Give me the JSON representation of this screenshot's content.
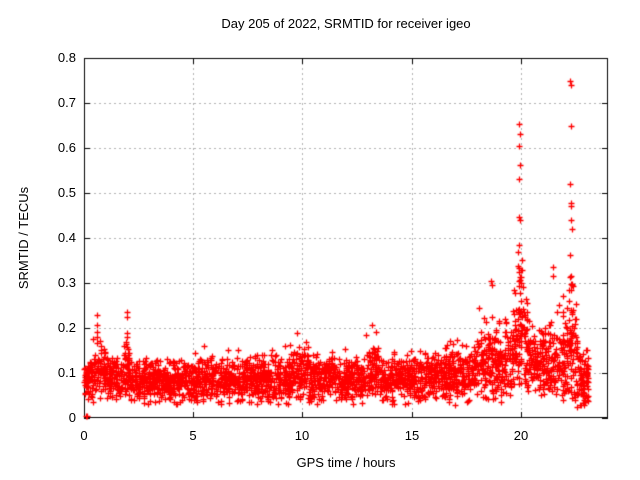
{
  "window_title": "Day 205 of 2022, SRMTID for receiver igeo",
  "chart_data": {
    "type": "scatter",
    "title": "Day 205 of 2022, SRMTID for receiver igeo",
    "xlabel": "GPS time / hours",
    "ylabel": "SRMTID / TECUs",
    "xlim": [
      0,
      24
    ],
    "ylim": [
      0,
      0.8
    ],
    "xticks": [
      0,
      5,
      10,
      15,
      20
    ],
    "xtick_labels": [
      "0",
      "5",
      "10",
      "15",
      "20"
    ],
    "yticks": [
      0,
      0.1,
      0.2,
      0.3,
      0.4,
      0.5,
      0.6,
      0.7,
      0.8
    ],
    "ytick_labels": [
      "0",
      "0.1",
      "0.2",
      "0.3",
      "0.4",
      "0.5",
      "0.6",
      "0.7",
      "0.8"
    ],
    "grid": true,
    "grid_style": "dashed",
    "legend": "none",
    "marker": "plus",
    "marker_size_px": 7,
    "marker_color": "#ff0000",
    "axis_color": "#000000",
    "grid_color": "#b0b0b0",
    "background": "#ffffff",
    "series_name": "SRMTID",
    "data_time_span_hours": [
      0,
      23.1
    ],
    "outlier_points_format": [
      "gps_hour",
      "srmtid_tecu"
    ],
    "outlier_points": [
      [
        0.07,
        0.004
      ],
      [
        0.13,
        0.004
      ],
      [
        0.42,
        0.175
      ],
      [
        0.58,
        0.229
      ],
      [
        0.58,
        0.207
      ],
      [
        0.58,
        0.192
      ],
      [
        0.58,
        0.181
      ],
      [
        0.6,
        0.166
      ],
      [
        1.93,
        0.165
      ],
      [
        1.95,
        0.235
      ],
      [
        1.95,
        0.19
      ],
      [
        1.96,
        0.18
      ],
      [
        1.97,
        0.225
      ],
      [
        9.75,
        0.19
      ],
      [
        13.18,
        0.207
      ],
      [
        13.38,
        0.192
      ],
      [
        17.0,
        0.028
      ],
      [
        19.1,
        0.036
      ],
      [
        18.62,
        0.305
      ],
      [
        18.7,
        0.295
      ],
      [
        19.9,
        0.37
      ],
      [
        19.93,
        0.653
      ],
      [
        19.93,
        0.605
      ],
      [
        19.93,
        0.447
      ],
      [
        19.94,
        0.532
      ],
      [
        19.94,
        0.385
      ],
      [
        19.95,
        0.631
      ],
      [
        19.95,
        0.441
      ],
      [
        19.96,
        0.562
      ],
      [
        21.47,
        0.315
      ],
      [
        21.5,
        0.335
      ],
      [
        22.25,
        0.362
      ],
      [
        22.28,
        0.748
      ],
      [
        22.28,
        0.52
      ],
      [
        22.3,
        0.741
      ],
      [
        22.3,
        0.65
      ],
      [
        22.3,
        0.478
      ],
      [
        22.31,
        0.44
      ],
      [
        22.32,
        0.472
      ],
      [
        22.33,
        0.421
      ],
      [
        22.6,
        0.024
      ],
      [
        22.75,
        0.03
      ]
    ],
    "band_model": {
      "description": "dense baseline scatter approximated by gaussian segments",
      "seed": 20220725,
      "segment_format": [
        "t_start_h",
        "t_end_h",
        "n_points",
        "mean",
        "sd",
        "min",
        "max"
      ],
      "segments": [
        [
          0.0,
          0.35,
          55,
          0.085,
          0.022,
          0.035,
          0.135
        ],
        [
          0.35,
          0.95,
          85,
          0.1,
          0.03,
          0.035,
          0.185
        ],
        [
          0.95,
          1.8,
          115,
          0.085,
          0.027,
          0.03,
          0.175
        ],
        [
          1.8,
          2.2,
          60,
          0.1,
          0.032,
          0.04,
          0.185
        ],
        [
          2.2,
          3.2,
          135,
          0.08,
          0.024,
          0.03,
          0.15
        ],
        [
          3.2,
          5.0,
          250,
          0.082,
          0.024,
          0.028,
          0.16
        ],
        [
          5.0,
          7.0,
          280,
          0.085,
          0.025,
          0.03,
          0.165
        ],
        [
          7.0,
          9.4,
          330,
          0.085,
          0.026,
          0.03,
          0.17
        ],
        [
          9.4,
          10.3,
          125,
          0.1,
          0.032,
          0.04,
          0.175
        ],
        [
          10.3,
          11.0,
          95,
          0.085,
          0.025,
          0.03,
          0.15
        ],
        [
          11.0,
          11.5,
          70,
          0.095,
          0.028,
          0.04,
          0.16
        ],
        [
          11.5,
          12.9,
          190,
          0.085,
          0.026,
          0.03,
          0.16
        ],
        [
          12.9,
          13.5,
          85,
          0.105,
          0.035,
          0.045,
          0.2
        ],
        [
          13.5,
          15.5,
          270,
          0.085,
          0.026,
          0.03,
          0.165
        ],
        [
          15.5,
          16.6,
          145,
          0.095,
          0.028,
          0.035,
          0.17
        ],
        [
          16.6,
          18.0,
          190,
          0.1,
          0.032,
          0.03,
          0.185
        ],
        [
          18.0,
          18.9,
          125,
          0.125,
          0.048,
          0.04,
          0.3
        ],
        [
          18.9,
          19.6,
          95,
          0.115,
          0.042,
          0.05,
          0.27
        ],
        [
          19.6,
          20.3,
          115,
          0.175,
          0.062,
          0.055,
          0.355
        ],
        [
          19.88,
          20.08,
          16,
          0.29,
          0.055,
          0.2,
          0.4
        ],
        [
          20.3,
          21.2,
          120,
          0.125,
          0.04,
          0.045,
          0.26
        ],
        [
          21.2,
          21.8,
          80,
          0.13,
          0.05,
          0.05,
          0.3
        ],
        [
          21.8,
          22.6,
          115,
          0.135,
          0.058,
          0.04,
          0.345
        ],
        [
          22.2,
          22.42,
          14,
          0.25,
          0.065,
          0.13,
          0.365
        ],
        [
          22.6,
          23.1,
          75,
          0.085,
          0.03,
          0.022,
          0.155
        ]
      ]
    }
  }
}
